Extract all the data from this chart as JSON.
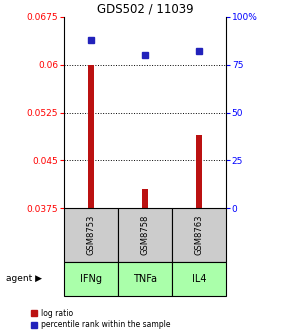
{
  "title": "GDS502 / 11039",
  "samples": [
    "GSM8753",
    "GSM8758",
    "GSM8763"
  ],
  "agents": [
    "IFNg",
    "TNFa",
    "IL4"
  ],
  "log_ratio": [
    0.06,
    0.0405,
    0.049
  ],
  "log_ratio_base": 0.0375,
  "percentile_rank": [
    88,
    80,
    82
  ],
  "ylim_left": [
    0.0375,
    0.0675
  ],
  "ylim_right": [
    0,
    100
  ],
  "yticks_left": [
    0.0375,
    0.045,
    0.0525,
    0.06,
    0.0675
  ],
  "yticks_right": [
    0,
    25,
    50,
    75,
    100
  ],
  "ytick_labels_left": [
    "0.0375",
    "0.045",
    "0.0525",
    "0.06",
    "0.0675"
  ],
  "ytick_labels_right": [
    "0",
    "25",
    "50",
    "75",
    "100%"
  ],
  "bar_color": "#bb1111",
  "square_color": "#2222bb",
  "sample_box_color": "#cccccc",
  "agent_box_color": "#aaffaa",
  "legend_bar_label": "log ratio",
  "legend_sq_label": "percentile rank within the sample"
}
